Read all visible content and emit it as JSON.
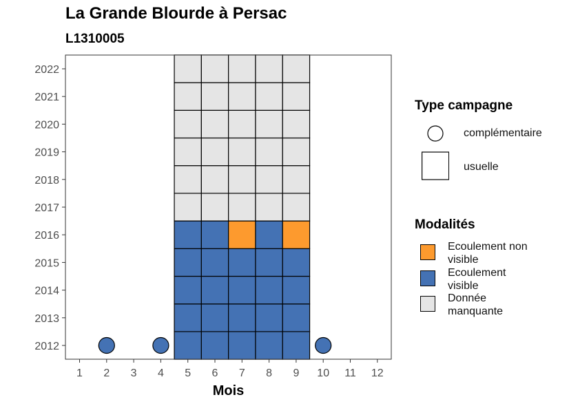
{
  "title": "La Grande Blourde à Persac",
  "subtitle": "L1310005",
  "chart_data": {
    "type": "heatmap",
    "xlabel": "Mois",
    "ylabel": "",
    "x": [
      1,
      2,
      3,
      4,
      5,
      6,
      7,
      8,
      9,
      10,
      11,
      12
    ],
    "x_tick_labels": [
      "1",
      "2",
      "3",
      "4",
      "5",
      "6",
      "7",
      "8",
      "9",
      "10",
      "11",
      "12"
    ],
    "y": [
      2012,
      2013,
      2014,
      2015,
      2016,
      2017,
      2018,
      2019,
      2020,
      2021,
      2022
    ],
    "y_tick_labels": [
      "2012",
      "2013",
      "2014",
      "2015",
      "2016",
      "2017",
      "2018",
      "2019",
      "2020",
      "2021",
      "2022"
    ],
    "colors": {
      "ecoulement_non_visible": "#FD9A2E",
      "ecoulement_visible": "#4472B4",
      "donnee_manquante": "#E5E5E5"
    },
    "cells": [
      {
        "month": 2,
        "year": 2012,
        "type": "complémentaire",
        "modalite": "ecoulement_visible"
      },
      {
        "month": 4,
        "year": 2012,
        "type": "complémentaire",
        "modalite": "ecoulement_visible"
      },
      {
        "month": 10,
        "year": 2012,
        "type": "complémentaire",
        "modalite": "ecoulement_visible"
      },
      {
        "month": 5,
        "year": 2012,
        "type": "usuelle",
        "modalite": "ecoulement_visible"
      },
      {
        "month": 6,
        "year": 2012,
        "type": "usuelle",
        "modalite": "ecoulement_visible"
      },
      {
        "month": 7,
        "year": 2012,
        "type": "usuelle",
        "modalite": "ecoulement_visible"
      },
      {
        "month": 8,
        "year": 2012,
        "type": "usuelle",
        "modalite": "ecoulement_visible"
      },
      {
        "month": 9,
        "year": 2012,
        "type": "usuelle",
        "modalite": "ecoulement_visible"
      },
      {
        "month": 5,
        "year": 2013,
        "type": "usuelle",
        "modalite": "ecoulement_visible"
      },
      {
        "month": 6,
        "year": 2013,
        "type": "usuelle",
        "modalite": "ecoulement_visible"
      },
      {
        "month": 7,
        "year": 2013,
        "type": "usuelle",
        "modalite": "ecoulement_visible"
      },
      {
        "month": 8,
        "year": 2013,
        "type": "usuelle",
        "modalite": "ecoulement_visible"
      },
      {
        "month": 9,
        "year": 2013,
        "type": "usuelle",
        "modalite": "ecoulement_visible"
      },
      {
        "month": 5,
        "year": 2014,
        "type": "usuelle",
        "modalite": "ecoulement_visible"
      },
      {
        "month": 6,
        "year": 2014,
        "type": "usuelle",
        "modalite": "ecoulement_visible"
      },
      {
        "month": 7,
        "year": 2014,
        "type": "usuelle",
        "modalite": "ecoulement_visible"
      },
      {
        "month": 8,
        "year": 2014,
        "type": "usuelle",
        "modalite": "ecoulement_visible"
      },
      {
        "month": 9,
        "year": 2014,
        "type": "usuelle",
        "modalite": "ecoulement_visible"
      },
      {
        "month": 5,
        "year": 2015,
        "type": "usuelle",
        "modalite": "ecoulement_visible"
      },
      {
        "month": 6,
        "year": 2015,
        "type": "usuelle",
        "modalite": "ecoulement_visible"
      },
      {
        "month": 7,
        "year": 2015,
        "type": "usuelle",
        "modalite": "ecoulement_visible"
      },
      {
        "month": 8,
        "year": 2015,
        "type": "usuelle",
        "modalite": "ecoulement_visible"
      },
      {
        "month": 9,
        "year": 2015,
        "type": "usuelle",
        "modalite": "ecoulement_visible"
      },
      {
        "month": 5,
        "year": 2016,
        "type": "usuelle",
        "modalite": "ecoulement_visible"
      },
      {
        "month": 6,
        "year": 2016,
        "type": "usuelle",
        "modalite": "ecoulement_visible"
      },
      {
        "month": 7,
        "year": 2016,
        "type": "usuelle",
        "modalite": "ecoulement_non_visible"
      },
      {
        "month": 8,
        "year": 2016,
        "type": "usuelle",
        "modalite": "ecoulement_visible"
      },
      {
        "month": 9,
        "year": 2016,
        "type": "usuelle",
        "modalite": "ecoulement_non_visible"
      },
      {
        "month": 5,
        "year": 2017,
        "type": "usuelle",
        "modalite": "donnee_manquante"
      },
      {
        "month": 6,
        "year": 2017,
        "type": "usuelle",
        "modalite": "donnee_manquante"
      },
      {
        "month": 7,
        "year": 2017,
        "type": "usuelle",
        "modalite": "donnee_manquante"
      },
      {
        "month": 8,
        "year": 2017,
        "type": "usuelle",
        "modalite": "donnee_manquante"
      },
      {
        "month": 9,
        "year": 2017,
        "type": "usuelle",
        "modalite": "donnee_manquante"
      },
      {
        "month": 5,
        "year": 2018,
        "type": "usuelle",
        "modalite": "donnee_manquante"
      },
      {
        "month": 6,
        "year": 2018,
        "type": "usuelle",
        "modalite": "donnee_manquante"
      },
      {
        "month": 7,
        "year": 2018,
        "type": "usuelle",
        "modalite": "donnee_manquante"
      },
      {
        "month": 8,
        "year": 2018,
        "type": "usuelle",
        "modalite": "donnee_manquante"
      },
      {
        "month": 9,
        "year": 2018,
        "type": "usuelle",
        "modalite": "donnee_manquante"
      },
      {
        "month": 5,
        "year": 2019,
        "type": "usuelle",
        "modalite": "donnee_manquante"
      },
      {
        "month": 6,
        "year": 2019,
        "type": "usuelle",
        "modalite": "donnee_manquante"
      },
      {
        "month": 7,
        "year": 2019,
        "type": "usuelle",
        "modalite": "donnee_manquante"
      },
      {
        "month": 8,
        "year": 2019,
        "type": "usuelle",
        "modalite": "donnee_manquante"
      },
      {
        "month": 9,
        "year": 2019,
        "type": "usuelle",
        "modalite": "donnee_manquante"
      },
      {
        "month": 5,
        "year": 2020,
        "type": "usuelle",
        "modalite": "donnee_manquante"
      },
      {
        "month": 6,
        "year": 2020,
        "type": "usuelle",
        "modalite": "donnee_manquante"
      },
      {
        "month": 7,
        "year": 2020,
        "type": "usuelle",
        "modalite": "donnee_manquante"
      },
      {
        "month": 8,
        "year": 2020,
        "type": "usuelle",
        "modalite": "donnee_manquante"
      },
      {
        "month": 9,
        "year": 2020,
        "type": "usuelle",
        "modalite": "donnee_manquante"
      },
      {
        "month": 5,
        "year": 2021,
        "type": "usuelle",
        "modalite": "donnee_manquante"
      },
      {
        "month": 6,
        "year": 2021,
        "type": "usuelle",
        "modalite": "donnee_manquante"
      },
      {
        "month": 7,
        "year": 2021,
        "type": "usuelle",
        "modalite": "donnee_manquante"
      },
      {
        "month": 8,
        "year": 2021,
        "type": "usuelle",
        "modalite": "donnee_manquante"
      },
      {
        "month": 9,
        "year": 2021,
        "type": "usuelle",
        "modalite": "donnee_manquante"
      },
      {
        "month": 5,
        "year": 2022,
        "type": "usuelle",
        "modalite": "donnee_manquante"
      },
      {
        "month": 6,
        "year": 2022,
        "type": "usuelle",
        "modalite": "donnee_manquante"
      },
      {
        "month": 7,
        "year": 2022,
        "type": "usuelle",
        "modalite": "donnee_manquante"
      },
      {
        "month": 8,
        "year": 2022,
        "type": "usuelle",
        "modalite": "donnee_manquante"
      },
      {
        "month": 9,
        "year": 2022,
        "type": "usuelle",
        "modalite": "donnee_manquante"
      }
    ],
    "legend": {
      "type_title": "Type campagne",
      "type_items": [
        {
          "label": "complémentaire",
          "shape": "circle"
        },
        {
          "label": "usuelle",
          "shape": "square"
        }
      ],
      "modalites_title": "Modalités",
      "modalites_items": [
        {
          "label": "Ecoulement non visible",
          "color": "#FD9A2E"
        },
        {
          "label": "Ecoulement visible",
          "color": "#4472B4"
        },
        {
          "label": "Donnée manquante",
          "color": "#E5E5E5"
        }
      ],
      "placement": "right"
    },
    "grid": false
  }
}
